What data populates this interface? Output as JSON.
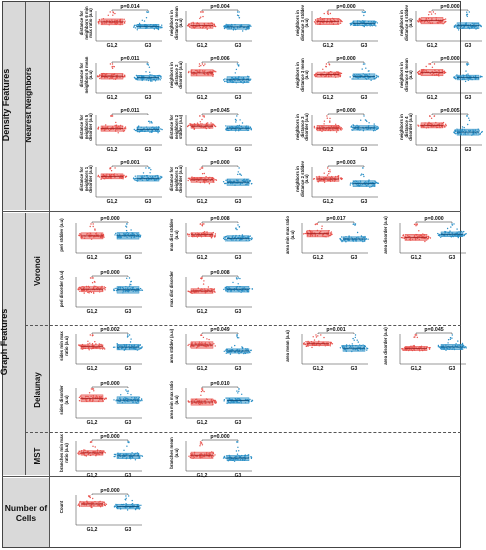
{
  "sections": {
    "density": "Density Features",
    "nearest": "Nearest Neighbors",
    "graph": "Graph Features",
    "voronoi": "Voronoi",
    "delaunay": "Delaunay",
    "mst": "MST",
    "cells": "Number of Cells"
  },
  "groups": [
    "G1,2",
    "G3"
  ],
  "colors": {
    "g1": "#e8524d",
    "g3": "#2a8fc6",
    "band": "#d9d9d9"
  },
  "chart_data": [
    {
      "type": "box",
      "section": "nearest-neighbors",
      "ylabel": "distance for neighbors 6 min max ratio (a.u)",
      "pvalue": "p=0.014",
      "categories": [
        "G1,2",
        "G3"
      ]
    },
    {
      "type": "box",
      "section": "nearest-neighbors",
      "ylabel": "neighbors in distance 2 mean (a.u)",
      "pvalue": "p=0.004",
      "categories": [
        "G1,2",
        "G3"
      ]
    },
    {
      "type": "box",
      "section": "nearest-neighbors",
      "ylabel": "neighbors in distance 3 stddev (a.u)",
      "pvalue": "p=0.000",
      "categories": [
        "G1,2",
        "G3"
      ]
    },
    {
      "type": "box",
      "section": "nearest-neighbors",
      "ylabel": "neighbors in distance 4 stddev (a.u)",
      "pvalue": "p=0.000",
      "categories": [
        "G1,2",
        "G3"
      ]
    },
    {
      "type": "box",
      "section": "nearest-neighbors",
      "ylabel": "distance for neighbors 6 mean (a.u)",
      "pvalue": "p=0.011",
      "categories": [
        "G1,2",
        "G3"
      ]
    },
    {
      "type": "box",
      "section": "nearest-neighbors",
      "ylabel": "neighbors in distance 2 disorder (a.u)",
      "pvalue": "p=0.006",
      "categories": [
        "G1,2",
        "G3"
      ]
    },
    {
      "type": "box",
      "section": "nearest-neighbors",
      "ylabel": "neighbors in distance 3 mean (a.u)",
      "pvalue": "p=0.000",
      "categories": [
        "G1,2",
        "G3"
      ]
    },
    {
      "type": "box",
      "section": "nearest-neighbors",
      "ylabel": "neighbors in distance 4 mean (a.u)",
      "pvalue": "p=0.000",
      "categories": [
        "G1,2",
        "G3"
      ]
    },
    {
      "type": "box",
      "section": "nearest-neighbors",
      "ylabel": "distance for neighbors 5 disorder (a.u)",
      "pvalue": "p=0.011",
      "categories": [
        "G1,2",
        "G3"
      ]
    },
    {
      "type": "box",
      "section": "nearest-neighbors",
      "ylabel": "distance for neighbors 2 stddev (a.u)",
      "pvalue": "p=0.045",
      "categories": [
        "G1,2",
        "G3"
      ]
    },
    {
      "type": "box",
      "section": "nearest-neighbors",
      "ylabel": "neighbors in distance 3 disorder (a.u)",
      "pvalue": "p=0.000",
      "categories": [
        "G1,2",
        "G3"
      ]
    },
    {
      "type": "box",
      "section": "nearest-neighbors",
      "ylabel": "neighbors in distance 4 disorder (a.u)",
      "pvalue": "p=0.005",
      "categories": [
        "G1,2",
        "G3"
      ]
    },
    {
      "type": "box",
      "section": "nearest-neighbors",
      "ylabel": "distance for neighbors 1 disorder (a.u)",
      "pvalue": "p=0.001",
      "categories": [
        "G1,2",
        "G3"
      ]
    },
    {
      "type": "box",
      "section": "nearest-neighbors",
      "ylabel": "distance for neighbors 2 disorder (a.u)",
      "pvalue": "p=0.000",
      "categories": [
        "G1,2",
        "G3"
      ]
    },
    {
      "type": "box",
      "section": "nearest-neighbors",
      "ylabel": "neighbors in distance 2 stddev (a.u)",
      "pvalue": "p=0.003",
      "categories": [
        "G1,2",
        "G3"
      ]
    },
    {
      "type": "box",
      "section": "voronoi",
      "ylabel": "peri stddev (a.u)",
      "pvalue": "p=0.000",
      "categories": [
        "G1,2",
        "G3"
      ]
    },
    {
      "type": "box",
      "section": "voronoi",
      "ylabel": "max dist stddev (a.u)",
      "pvalue": "p=0.008",
      "categories": [
        "G1,2",
        "G3"
      ]
    },
    {
      "type": "box",
      "section": "voronoi",
      "ylabel": "area min max ratio (a.u)",
      "pvalue": "p=0.017",
      "categories": [
        "G1,2",
        "G3"
      ]
    },
    {
      "type": "box",
      "section": "voronoi",
      "ylabel": "area disorder (a.u)",
      "pvalue": "p=0.000",
      "categories": [
        "G1,2",
        "G3"
      ]
    },
    {
      "type": "box",
      "section": "voronoi",
      "ylabel": "peri disorder (a.u)",
      "pvalue": "p=0.000",
      "categories": [
        "G1,2",
        "G3"
      ]
    },
    {
      "type": "box",
      "section": "voronoi",
      "ylabel": "max dist disorder",
      "pvalue": "p=0.008",
      "categories": [
        "G1,2",
        "G3"
      ]
    },
    {
      "type": "box",
      "section": "delaunay",
      "ylabel": "sides min max ratio (a.u)",
      "pvalue": "p=0.002",
      "categories": [
        "G1,2",
        "G3"
      ]
    },
    {
      "type": "box",
      "section": "delaunay",
      "ylabel": "area stddev (a.u)",
      "pvalue": "p=0.049",
      "categories": [
        "G1,2",
        "G3"
      ]
    },
    {
      "type": "box",
      "section": "delaunay",
      "ylabel": "area mean (a.u)",
      "pvalue": "p=0.001",
      "categories": [
        "G1,2",
        "G3"
      ]
    },
    {
      "type": "box",
      "section": "delaunay",
      "ylabel": "area disorder (a.u)",
      "pvalue": "p=0.045",
      "categories": [
        "G1,2",
        "G3"
      ]
    },
    {
      "type": "box",
      "section": "delaunay",
      "ylabel": "sides disorder (a.u)",
      "pvalue": "p=0.000",
      "categories": [
        "G1,2",
        "G3"
      ]
    },
    {
      "type": "box",
      "section": "delaunay",
      "ylabel": "area min max ratio (a.u)",
      "pvalue": "p=0.010",
      "categories": [
        "G1,2",
        "G3"
      ]
    },
    {
      "type": "box",
      "section": "mst",
      "ylabel": "branches min max ratio (a.u)",
      "pvalue": "p=0.000",
      "categories": [
        "G1,2",
        "G3"
      ]
    },
    {
      "type": "box",
      "section": "mst",
      "ylabel": "branches mean (a.u)",
      "pvalue": "p=0.000",
      "categories": [
        "G1,2",
        "G3"
      ]
    },
    {
      "type": "box",
      "section": "number-of-cells",
      "ylabel": "Count",
      "pvalue": "p=0.000",
      "categories": [
        "G1,2",
        "G3"
      ]
    }
  ]
}
